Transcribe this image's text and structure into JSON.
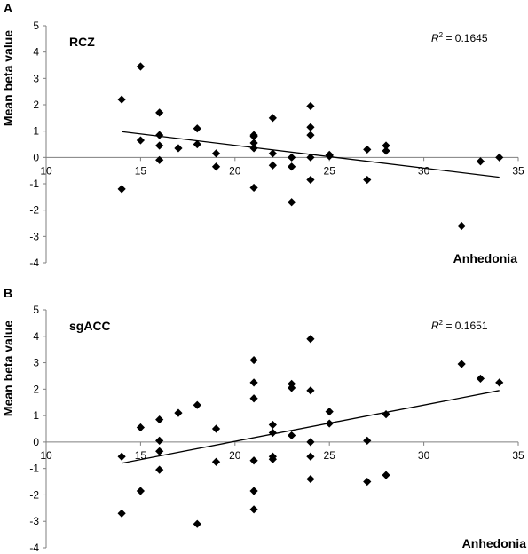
{
  "chart_data": [
    {
      "type": "scatter",
      "panel": "A",
      "region_label": "RCZ",
      "r2_label": "R",
      "r2_sup": "2",
      "r2_value": " = 0.1645",
      "xlabel": "Anhedonia",
      "ylabel": "Mean beta value",
      "xlim": [
        10,
        35
      ],
      "ylim": [
        -4,
        5
      ],
      "xticks": [
        10,
        15,
        20,
        25,
        30,
        35
      ],
      "yticks": [
        5,
        4,
        3,
        2,
        1,
        0,
        -1,
        -2,
        -3,
        -4
      ],
      "trendline": {
        "x": [
          14,
          34
        ],
        "y": [
          0.98,
          -0.75
        ]
      },
      "points": [
        {
          "x": 14,
          "y": 2.2
        },
        {
          "x": 14,
          "y": -1.2
        },
        {
          "x": 15,
          "y": 3.45
        },
        {
          "x": 15,
          "y": 0.65
        },
        {
          "x": 16,
          "y": 1.7
        },
        {
          "x": 16,
          "y": 0.85
        },
        {
          "x": 16,
          "y": 0.45
        },
        {
          "x": 16,
          "y": -0.1
        },
        {
          "x": 17,
          "y": 0.35
        },
        {
          "x": 18,
          "y": 1.1
        },
        {
          "x": 18,
          "y": 0.5
        },
        {
          "x": 19,
          "y": 0.15
        },
        {
          "x": 19,
          "y": -0.35
        },
        {
          "x": 21,
          "y": 0.85
        },
        {
          "x": 21,
          "y": 0.8
        },
        {
          "x": 21,
          "y": 0.55
        },
        {
          "x": 21,
          "y": 0.35
        },
        {
          "x": 21,
          "y": -1.15
        },
        {
          "x": 22,
          "y": 1.5
        },
        {
          "x": 22,
          "y": 0.15
        },
        {
          "x": 22,
          "y": -0.3
        },
        {
          "x": 23,
          "y": 0.0
        },
        {
          "x": 23,
          "y": -0.35
        },
        {
          "x": 23,
          "y": -1.7
        },
        {
          "x": 24,
          "y": 1.95
        },
        {
          "x": 24,
          "y": 1.15
        },
        {
          "x": 24,
          "y": 0.85
        },
        {
          "x": 24,
          "y": 0.0
        },
        {
          "x": 24,
          "y": -0.85
        },
        {
          "x": 25,
          "y": 0.1
        },
        {
          "x": 25,
          "y": 0.05
        },
        {
          "x": 27,
          "y": 0.3
        },
        {
          "x": 27,
          "y": -0.85
        },
        {
          "x": 28,
          "y": 0.45
        },
        {
          "x": 28,
          "y": 0.25
        },
        {
          "x": 32,
          "y": -2.6
        },
        {
          "x": 33,
          "y": -0.15
        },
        {
          "x": 34,
          "y": 0.0
        }
      ]
    },
    {
      "type": "scatter",
      "panel": "B",
      "region_label": "sgACC",
      "r2_label": "R",
      "r2_sup": "2",
      "r2_value": " = 0.1651",
      "xlabel": "Anhedonia",
      "ylabel": "Mean beta value",
      "xlim": [
        10,
        35
      ],
      "ylim": [
        -4,
        5
      ],
      "xticks": [
        10,
        15,
        20,
        25,
        30,
        35
      ],
      "yticks": [
        5,
        4,
        3,
        2,
        1,
        0,
        -1,
        -2,
        -3,
        -4
      ],
      "trendline": {
        "x": [
          14,
          34
        ],
        "y": [
          -0.8,
          1.95
        ]
      },
      "points": [
        {
          "x": 14,
          "y": -0.55
        },
        {
          "x": 14,
          "y": -2.7
        },
        {
          "x": 15,
          "y": 0.55
        },
        {
          "x": 15,
          "y": -1.85
        },
        {
          "x": 16,
          "y": 0.85
        },
        {
          "x": 16,
          "y": 0.05
        },
        {
          "x": 16,
          "y": -0.35
        },
        {
          "x": 16,
          "y": -1.05
        },
        {
          "x": 17,
          "y": 1.1
        },
        {
          "x": 18,
          "y": 1.4
        },
        {
          "x": 18,
          "y": -3.1
        },
        {
          "x": 19,
          "y": 0.5
        },
        {
          "x": 19,
          "y": -0.75
        },
        {
          "x": 21,
          "y": 3.1
        },
        {
          "x": 21,
          "y": 2.25
        },
        {
          "x": 21,
          "y": 1.65
        },
        {
          "x": 21,
          "y": -0.7
        },
        {
          "x": 21,
          "y": -1.85
        },
        {
          "x": 21,
          "y": -2.55
        },
        {
          "x": 22,
          "y": 0.65
        },
        {
          "x": 22,
          "y": 0.35
        },
        {
          "x": 22,
          "y": -0.55
        },
        {
          "x": 22,
          "y": -0.65
        },
        {
          "x": 23,
          "y": 2.2
        },
        {
          "x": 23,
          "y": 2.05
        },
        {
          "x": 23,
          "y": 0.25
        },
        {
          "x": 24,
          "y": 3.9
        },
        {
          "x": 24,
          "y": 1.95
        },
        {
          "x": 24,
          "y": 0.0
        },
        {
          "x": 24,
          "y": -0.55
        },
        {
          "x": 24,
          "y": -1.4
        },
        {
          "x": 25,
          "y": 1.15
        },
        {
          "x": 25,
          "y": 0.7
        },
        {
          "x": 27,
          "y": 0.05
        },
        {
          "x": 27,
          "y": -1.5
        },
        {
          "x": 28,
          "y": 1.05
        },
        {
          "x": 28,
          "y": -1.25
        },
        {
          "x": 32,
          "y": 2.95
        },
        {
          "x": 33,
          "y": 2.4
        },
        {
          "x": 34,
          "y": 2.25
        }
      ]
    }
  ]
}
